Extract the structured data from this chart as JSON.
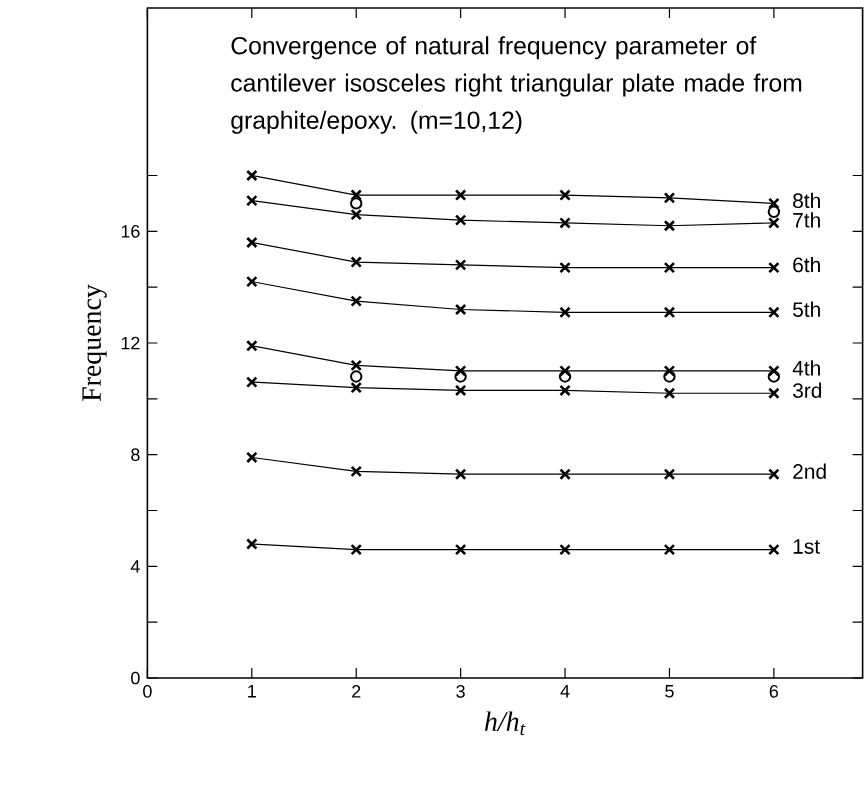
{
  "chart_data": {
    "type": "line",
    "title": "Convergence of natural frequency parameter of cantilever isosceles right triangular plate made from graphite/epoxy. (m=10,12)",
    "xlabel": "h/h$_{t}$",
    "ylabel": "Frequency",
    "x": [
      1,
      2,
      3,
      4,
      5,
      6
    ],
    "xlim": [
      0,
      6.85
    ],
    "ylim": [
      0,
      24
    ],
    "xticks": [
      0,
      1,
      2,
      3,
      4,
      5,
      6
    ],
    "yticks": [
      0,
      {
        "value": 2,
        "label": null
      },
      4,
      {
        "value": 6,
        "label": null
      },
      8,
      {
        "value": 10,
        "label": null
      },
      12,
      {
        "value": 14,
        "label": null
      },
      16,
      {
        "value": 18,
        "label": null
      }
    ],
    "marker": "cross",
    "grid": false,
    "legend": "right",
    "series": [
      {
        "name": "1st",
        "color": "#000000",
        "values": [
          4.8,
          4.6,
          4.6,
          4.6,
          4.6,
          4.6
        ]
      },
      {
        "name": "2nd",
        "color": "#000000",
        "values": [
          7.9,
          7.4,
          7.3,
          7.3,
          7.3,
          7.3
        ]
      },
      {
        "name": "3rd",
        "color": "#000000",
        "values": [
          10.6,
          10.4,
          10.3,
          10.3,
          10.2,
          10.2
        ]
      },
      {
        "name": "4th",
        "color": "#000000",
        "values": [
          11.9,
          11.2,
          11.0,
          11.0,
          11.0,
          11.0
        ]
      },
      {
        "name": "5th",
        "color": "#000000",
        "values": [
          14.2,
          13.5,
          13.2,
          13.1,
          13.1,
          13.1
        ]
      },
      {
        "name": "6th",
        "color": "#000000",
        "values": [
          15.6,
          14.9,
          14.8,
          14.7,
          14.7,
          14.7
        ]
      },
      {
        "name": "7th",
        "color": "#000000",
        "values": [
          17.1,
          16.6,
          16.4,
          16.3,
          16.2,
          16.3
        ]
      },
      {
        "name": "8th",
        "color": "#000000",
        "values": [
          18.0,
          17.3,
          17.3,
          17.3,
          17.2,
          17.0
        ]
      },
      {
        "type": "scatter",
        "marker": "circle",
        "color": "#000000",
        "values": [
          null,
          17.0,
          null,
          null,
          null,
          16.7
        ]
      },
      {
        "type": "scatter",
        "marker": "circle",
        "color": "#000000",
        "values": [
          null,
          10.8,
          10.8,
          10.8,
          10.8,
          10.8
        ]
      }
    ]
  }
}
